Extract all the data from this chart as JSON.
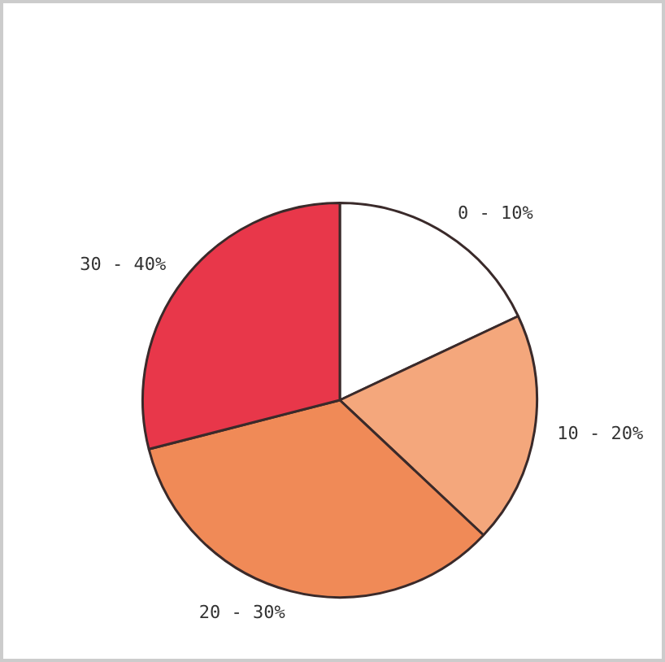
{
  "chart_data": {
    "type": "pie",
    "categories": [
      "0 - 10%",
      "10 - 20%",
      "20 - 30%",
      "30 - 40%"
    ],
    "values": [
      18,
      19,
      34,
      29
    ],
    "colors": [
      "#ffffff",
      "#f4a77c",
      "#f08a57",
      "#e8374a"
    ],
    "legend": false
  }
}
